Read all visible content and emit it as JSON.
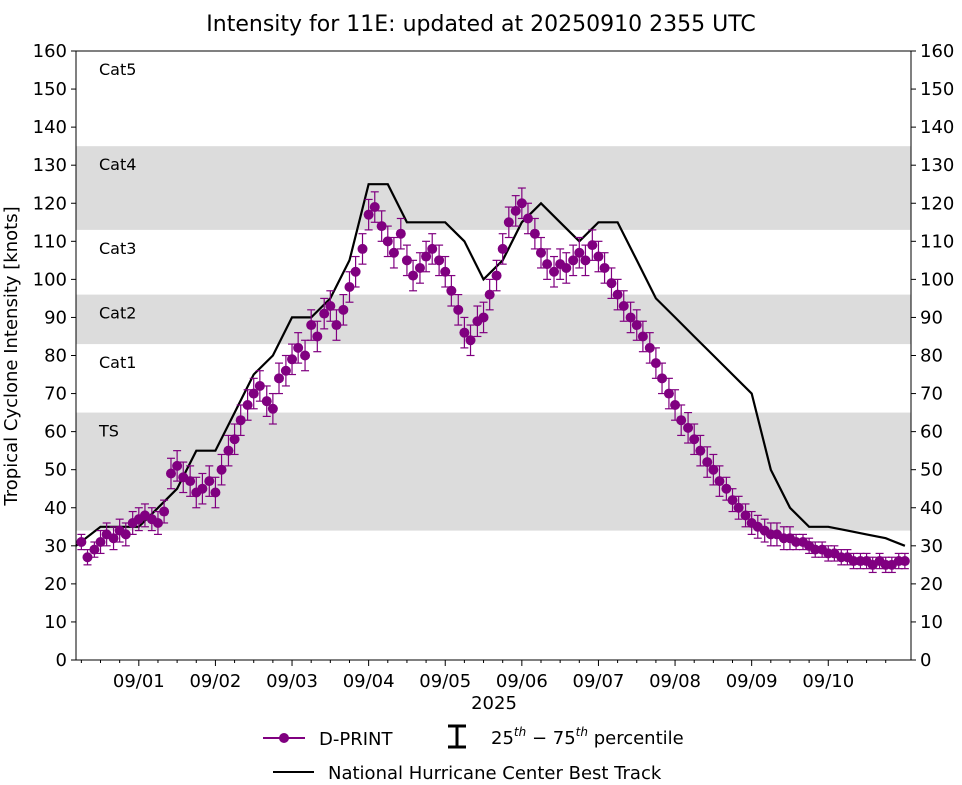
{
  "title": "Intensity for 11E: updated at 20250910 2355 UTC",
  "colors": {
    "dprint": "#800080",
    "best_track": "#000000",
    "band": "#dcdcdc",
    "background": "#ffffff"
  },
  "chart_data": {
    "type": "line",
    "title": "Intensity for 11E: updated at 20250910 2355 UTC",
    "xlabel": "2025",
    "ylabel": "Tropical Cyclone Intensity [knots]",
    "xlim": [
      -0.82,
      10.08
    ],
    "ylim": [
      0,
      160
    ],
    "x_units": "days after 2025-09-01 00 UTC",
    "x_tick_values": [
      0,
      1,
      2,
      3,
      4,
      5,
      6,
      7,
      8,
      9
    ],
    "x_tick_labels": [
      "09/01",
      "09/02",
      "09/03",
      "09/04",
      "09/05",
      "09/06",
      "09/07",
      "09/08",
      "09/09",
      "09/10"
    ],
    "y_tick_values": [
      0,
      10,
      20,
      30,
      40,
      50,
      60,
      70,
      80,
      90,
      100,
      110,
      120,
      130,
      140,
      150,
      160
    ],
    "y_tick_labels": [
      "0",
      "10",
      "20",
      "30",
      "40",
      "50",
      "60",
      "70",
      "80",
      "90",
      "100",
      "110",
      "120",
      "130",
      "140",
      "150",
      "160"
    ],
    "category_bands": [
      {
        "label": "TS",
        "min": 34,
        "max": 65,
        "shaded": true
      },
      {
        "label": "Cat1",
        "min": 65,
        "max": 83,
        "shaded": false
      },
      {
        "label": "Cat2",
        "min": 83,
        "max": 96,
        "shaded": true
      },
      {
        "label": "Cat3",
        "min": 96,
        "max": 113,
        "shaded": false
      },
      {
        "label": "Cat4",
        "min": 113,
        "max": 135,
        "shaded": true
      },
      {
        "label": "Cat5",
        "min": 135,
        "max": 160,
        "shaded": false
      }
    ],
    "series": [
      {
        "name": "National Hurricane Center Best Track",
        "kind": "line",
        "x": [
          -0.82,
          -0.5,
          -0.25,
          0.0,
          0.25,
          0.5,
          0.75,
          1.0,
          1.25,
          1.5,
          1.75,
          2.0,
          2.25,
          2.5,
          2.75,
          3.0,
          3.25,
          3.5,
          3.75,
          4.0,
          4.25,
          4.5,
          4.75,
          5.0,
          5.25,
          5.5,
          5.75,
          6.0,
          6.25,
          6.5,
          6.75,
          7.0,
          7.25,
          7.5,
          7.75,
          8.0,
          8.25,
          8.5,
          8.75,
          9.0,
          9.25,
          9.5,
          9.75,
          10.0
        ],
        "y": [
          30,
          35,
          35,
          35,
          40,
          45,
          55,
          55,
          65,
          75,
          80,
          90,
          90,
          95,
          105,
          125,
          125,
          115,
          115,
          115,
          110,
          100,
          105,
          115,
          120,
          115,
          110,
          115,
          115,
          105,
          95,
          90,
          85,
          80,
          75,
          70,
          50,
          40,
          35,
          35,
          34,
          33,
          32,
          30
        ]
      },
      {
        "name": "D-PRINT",
        "kind": "points_with_percentile_errorbars",
        "errorbar_meaning": "25th-75th percentile",
        "x": [
          -0.75,
          -0.67,
          -0.58,
          -0.5,
          -0.42,
          -0.33,
          -0.25,
          -0.17,
          -0.08,
          0.0,
          0.08,
          0.17,
          0.25,
          0.33,
          0.42,
          0.5,
          0.58,
          0.67,
          0.75,
          0.83,
          0.92,
          1.0,
          1.08,
          1.17,
          1.25,
          1.33,
          1.42,
          1.5,
          1.58,
          1.67,
          1.75,
          1.83,
          1.92,
          2.0,
          2.08,
          2.17,
          2.25,
          2.33,
          2.42,
          2.5,
          2.58,
          2.67,
          2.75,
          2.83,
          2.92,
          3.0,
          3.08,
          3.17,
          3.25,
          3.33,
          3.42,
          3.5,
          3.58,
          3.67,
          3.75,
          3.83,
          3.92,
          4.0,
          4.08,
          4.17,
          4.25,
          4.33,
          4.42,
          4.5,
          4.58,
          4.67,
          4.75,
          4.83,
          4.92,
          5.0,
          5.08,
          5.17,
          5.25,
          5.33,
          5.42,
          5.5,
          5.58,
          5.67,
          5.75,
          5.83,
          5.92,
          6.0,
          6.08,
          6.17,
          6.25,
          6.33,
          6.42,
          6.5,
          6.58,
          6.67,
          6.75,
          6.83,
          6.92,
          7.0,
          7.08,
          7.17,
          7.25,
          7.33,
          7.42,
          7.5,
          7.58,
          7.67,
          7.75,
          7.83,
          7.92,
          8.0,
          8.08,
          8.17,
          8.25,
          8.33,
          8.42,
          8.5,
          8.58,
          8.67,
          8.75,
          8.83,
          8.92,
          9.0,
          9.08,
          9.17,
          9.25,
          9.33,
          9.42,
          9.5,
          9.58,
          9.67,
          9.75,
          9.83,
          9.92,
          10.0
        ],
        "y": [
          31,
          27,
          29,
          31,
          33,
          32,
          34,
          33,
          36,
          37,
          38,
          37,
          36,
          39,
          49,
          51,
          48,
          47,
          44,
          45,
          47,
          44,
          50,
          55,
          58,
          63,
          67,
          70,
          72,
          68,
          66,
          74,
          76,
          79,
          82,
          80,
          88,
          85,
          91,
          93,
          88,
          92,
          98,
          102,
          108,
          117,
          119,
          114,
          110,
          107,
          112,
          105,
          101,
          103,
          106,
          108,
          105,
          102,
          97,
          92,
          86,
          84,
          89,
          90,
          96,
          101,
          108,
          115,
          118,
          120,
          116,
          112,
          107,
          104,
          102,
          104,
          103,
          105,
          107,
          105,
          109,
          106,
          103,
          99,
          96,
          93,
          90,
          88,
          85,
          82,
          78,
          74,
          70,
          67,
          63,
          61,
          58,
          55,
          52,
          50,
          47,
          45,
          42,
          40,
          38,
          36,
          35,
          34,
          33,
          33,
          32,
          32,
          31,
          31,
          30,
          29,
          29,
          28,
          28,
          27,
          27,
          26,
          26,
          26,
          25,
          26,
          25,
          25,
          26,
          26
        ],
        "p25": [
          29,
          25,
          27,
          28,
          30,
          29,
          31,
          30,
          33,
          34,
          35,
          34,
          33,
          36,
          45,
          47,
          44,
          43,
          40,
          41,
          43,
          40,
          46,
          51,
          54,
          59,
          63,
          66,
          68,
          64,
          62,
          70,
          72,
          75,
          78,
          76,
          84,
          81,
          87,
          89,
          84,
          88,
          94,
          98,
          104,
          113,
          115,
          110,
          106,
          103,
          108,
          101,
          97,
          99,
          102,
          104,
          101,
          98,
          93,
          88,
          82,
          80,
          85,
          86,
          92,
          97,
          104,
          111,
          114,
          116,
          112,
          108,
          103,
          100,
          98,
          100,
          99,
          101,
          103,
          101,
          105,
          102,
          99,
          95,
          92,
          89,
          86,
          84,
          81,
          78,
          74,
          70,
          66,
          63,
          59,
          57,
          54,
          51,
          48,
          46,
          43,
          42,
          39,
          37,
          35,
          33,
          32,
          31,
          30,
          30,
          29,
          29,
          29,
          29,
          28,
          27,
          27,
          26,
          26,
          25,
          25,
          24,
          24,
          24,
          23,
          24,
          23,
          23,
          24,
          24
        ],
        "p75": [
          33,
          29,
          31,
          34,
          36,
          35,
          37,
          36,
          39,
          40,
          41,
          40,
          39,
          42,
          53,
          55,
          52,
          51,
          48,
          49,
          51,
          48,
          54,
          59,
          62,
          67,
          71,
          74,
          76,
          72,
          70,
          78,
          80,
          83,
          86,
          84,
          92,
          89,
          95,
          97,
          92,
          96,
          102,
          106,
          112,
          121,
          123,
          118,
          114,
          111,
          116,
          109,
          105,
          107,
          110,
          112,
          109,
          106,
          101,
          96,
          90,
          88,
          93,
          94,
          100,
          105,
          112,
          119,
          122,
          124,
          120,
          116,
          111,
          108,
          106,
          108,
          107,
          109,
          111,
          109,
          113,
          110,
          107,
          103,
          100,
          97,
          94,
          92,
          89,
          86,
          82,
          78,
          74,
          71,
          67,
          65,
          62,
          59,
          56,
          54,
          51,
          48,
          45,
          43,
          41,
          39,
          38,
          37,
          36,
          36,
          35,
          35,
          33,
          33,
          32,
          31,
          31,
          30,
          30,
          29,
          29,
          28,
          28,
          28,
          27,
          28,
          27,
          27,
          28,
          28
        ]
      }
    ],
    "legend": {
      "placement": "bottom-center",
      "entries": [
        {
          "label": "D-PRINT",
          "marker": "circle-line"
        },
        {
          "label": "25th–75th percentile",
          "marker": "errorbar"
        },
        {
          "label": "National Hurricane Center Best Track",
          "marker": "line"
        }
      ]
    }
  },
  "legend_text": {
    "dprint": "D-PRINT",
    "pct_25": "25",
    "pct_th1": "th",
    "pct_dash": " − 75",
    "pct_th2": "th",
    "pct_word": " percentile",
    "best_track": "National Hurricane Center Best Track"
  }
}
